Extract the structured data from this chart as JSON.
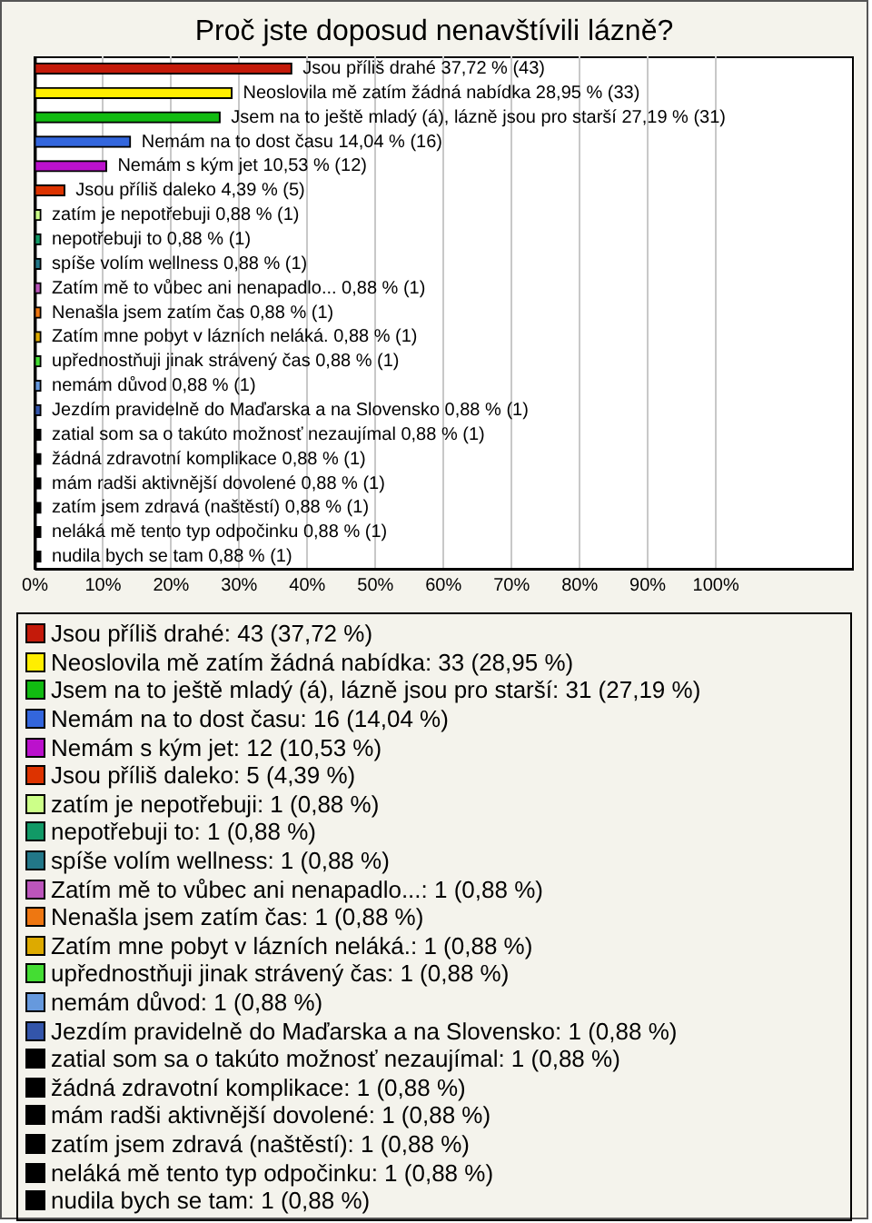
{
  "chart_data": {
    "type": "bar",
    "orientation": "horizontal",
    "title": "Proč jste doposud nenavštívili lázně?",
    "categories": [
      null,
      null,
      null,
      null,
      null,
      null,
      null,
      null,
      null,
      null,
      null,
      null,
      null,
      null,
      null,
      null,
      null,
      null,
      null,
      null,
      null
    ],
    "values": [
      37.72,
      28.95,
      27.19,
      14.04,
      10.53,
      4.39,
      0.88,
      0.88,
      0.88,
      0.88,
      0.88,
      0.88,
      0.88,
      0.88,
      0.88,
      0.88,
      0.88,
      0.88,
      0.88,
      0.88,
      0.88
    ],
    "colors": [
      "#c41a0a",
      "#ffee00",
      "#11bb11",
      "#3366dd",
      "#bb11cc",
      "#dd3300",
      "#ccff88",
      "#119966",
      "#227788",
      "#bb55bb",
      "#ee7711",
      "#ddaa00",
      "#44dd33",
      "#6699dd",
      "#3355aa",
      "#000000",
      "#000000",
      "#000000",
      "#000000",
      "#000000",
      "#000000"
    ],
    "value_labels": [
      "Jsou příliš drahé 37,72 % (43)",
      "Neoslovila mě zatím žádná nabídka 28,95 % (33)",
      "Jsem na to ještě mladý (á), lázně jsou pro starší 27,19 % (31)",
      "Nemám na to dost času 14,04 % (16)",
      "Nemám s kým jet 10,53 % (12)",
      "Jsou příliš daleko 4,39 % (5)",
      "zatím je nepotřebuji 0,88 % (1)",
      "nepotřebuji to 0,88 % (1)",
      "spíše volím wellness 0,88 % (1)",
      "Zatím mě to vůbec ani nenapadlo... 0,88 % (1)",
      "Nenašla jsem zatím čas 0,88 % (1)",
      "Zatím mne pobyt v lázních neláká. 0,88 % (1)",
      "upřednostňuji jinak strávený čas 0,88 % (1)",
      "nemám důvod 0,88 % (1)",
      "Jezdím pravidelně do Maďarska a na Slovensko 0,88 % (1)",
      "zatial som sa o takúto možnosť nezaujímal 0,88 % (1)",
      "žádná zdravotní komplikace 0,88 % (1)",
      "mám radši aktivnější dovolené 0,88 % (1)",
      "zatím jsem zdravá (naštěstí) 0,88 % (1)",
      "neláká mě tento typ odpočinku 0,88 % (1)",
      "nudila bych se tam 0,88 % (1)"
    ],
    "annotations": [
      "Jsou příliš drahé: 43 (37,72 %)",
      "Neoslovila mě zatím žádná nabídka: 33 (28,95 %)",
      "Jsem na to ještě mladý (á), lázně jsou pro starší: 31 (27,19 %)",
      "Nemám na to dost času: 16 (14,04 %)",
      "Nemám s kým jet: 12 (10,53 %)",
      "Jsou příliš daleko: 5 (4,39 %)",
      "zatím je nepotřebuji: 1 (0,88 %)",
      "nepotřebuji to: 1 (0,88 %)",
      "spíše volím wellness: 1 (0,88 %)",
      "Zatím mě to vůbec ani nenapadlo...: 1 (0,88 %)",
      "Nenašla jsem zatím čas: 1 (0,88 %)",
      "Zatím mne pobyt v lázních neláká.: 1 (0,88 %)",
      "upřednostňuji jinak strávený čas: 1 (0,88 %)",
      "nemám důvod: 1 (0,88 %)",
      "Jezdím pravidelně do Maďarska a na Slovensko: 1 (0,88 %)",
      "zatial som sa o takúto možnosť nezaujímal: 1 (0,88 %)",
      "žádná zdravotní komplikace: 1 (0,88 %)",
      "mám radši aktivnější dovolené: 1 (0,88 %)",
      "zatím jsem zdravá (naštěstí): 1 (0,88 %)",
      "neláká mě tento typ odpočinku: 1 (0,88 %)",
      "nudila bych se tam: 1 (0,88 %)"
    ],
    "xlim": [
      0,
      120
    ],
    "xticks": [
      {
        "value": 0,
        "label": "0%"
      },
      {
        "value": 10,
        "label": "10%"
      },
      {
        "value": 20,
        "label": "20%"
      },
      {
        "value": 30,
        "label": "30%"
      },
      {
        "value": 40,
        "label": "40%"
      },
      {
        "value": 50,
        "label": "50%"
      },
      {
        "value": 60,
        "label": "60%"
      },
      {
        "value": 70,
        "label": "70%"
      },
      {
        "value": 80,
        "label": "80%"
      },
      {
        "value": 90,
        "label": "90%"
      },
      {
        "value": 100,
        "label": "100%"
      }
    ],
    "grid": "x",
    "tick_labels": "x"
  }
}
